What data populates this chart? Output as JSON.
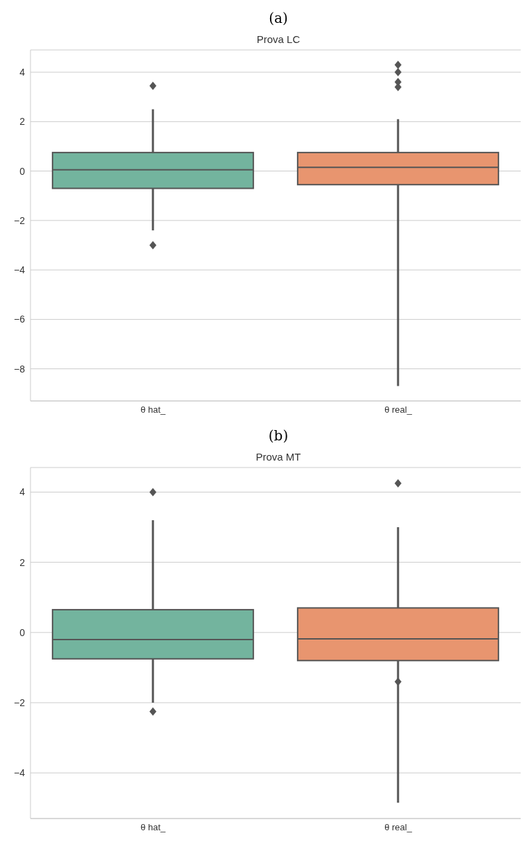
{
  "chart_data": [
    {
      "type": "box",
      "annotations": [
        "(a)"
      ],
      "title": "Prova LC",
      "categories": [
        "θ hat_",
        "θ real_"
      ],
      "colors": [
        "#73b49e",
        "#e8956f"
      ],
      "boxes": [
        {
          "low": -2.4,
          "q1": -0.7,
          "median": 0.05,
          "q3": 0.75,
          "high": 2.5,
          "outliers": [
            3.45,
            -3.0
          ]
        },
        {
          "low": -8.7,
          "q1": -0.55,
          "median": 0.15,
          "q3": 0.75,
          "high": 2.1,
          "outliers": [
            3.4,
            3.6,
            4.0,
            4.3
          ]
        }
      ],
      "ylim": [
        -9.3,
        4.9
      ],
      "yticks": [
        -8,
        -6,
        -4,
        -2,
        0,
        2,
        4
      ],
      "grid": "y"
    },
    {
      "type": "box",
      "annotations": [
        "(b)"
      ],
      "title": "Prova MT",
      "categories": [
        "θ hat_",
        "θ real_"
      ],
      "colors": [
        "#73b49e",
        "#e8956f"
      ],
      "boxes": [
        {
          "low": -2.0,
          "q1": -0.75,
          "median": -0.2,
          "q3": 0.65,
          "high": 3.2,
          "outliers": [
            4.0,
            -2.25
          ]
        },
        {
          "low": -4.85,
          "q1": -0.8,
          "median": -0.18,
          "q3": 0.7,
          "high": 3.0,
          "outliers": [
            4.25,
            -1.4
          ]
        }
      ],
      "ylim": [
        -5.3,
        4.7
      ],
      "yticks": [
        -4,
        -2,
        0,
        2,
        4
      ],
      "grid": "y"
    }
  ]
}
